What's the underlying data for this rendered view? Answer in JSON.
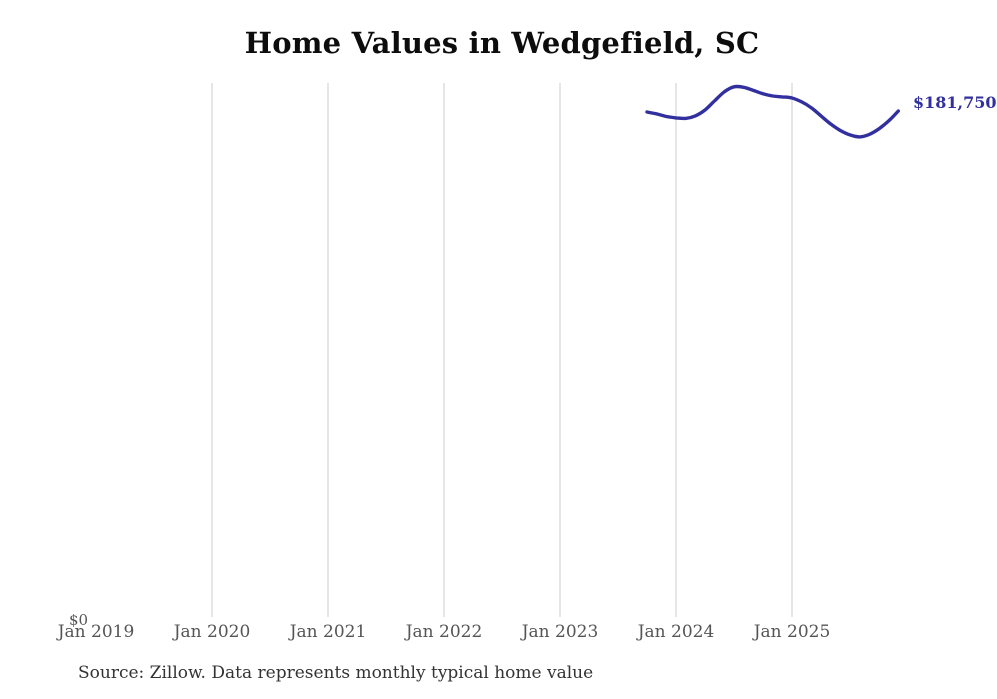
{
  "source_note": "Source: Zillow. Data represents monthly typical home value",
  "colors": {
    "line": "#32309f",
    "grid": "#cccccc",
    "tick_text": "#555555",
    "title_text": "#0d0d0d",
    "source_text": "#333333"
  },
  "chart_data": {
    "type": "line",
    "title": "Home Values in Wedgefield, SC",
    "xlabel": "",
    "ylabel": "",
    "y_zero_label": "$0",
    "end_value_label": "$181,750",
    "ylim": [
      0,
      192000
    ],
    "xlim": [
      "Jan 2019",
      "Jan 2026"
    ],
    "grid": "vertical-only",
    "legend": "none",
    "x_ticks": [
      {
        "label": "Jan 2019",
        "date": "2019-01",
        "gridline": false
      },
      {
        "label": "Jan 2020",
        "date": "2020-01",
        "gridline": true
      },
      {
        "label": "Jan 2021",
        "date": "2021-01",
        "gridline": true
      },
      {
        "label": "Jan 2022",
        "date": "2022-01",
        "gridline": true
      },
      {
        "label": "Jan 2023",
        "date": "2023-01",
        "gridline": true
      },
      {
        "label": "Jan 2024",
        "date": "2024-01",
        "gridline": true
      },
      {
        "label": "Jan 2025",
        "date": "2025-01",
        "gridline": true
      }
    ],
    "series": [
      {
        "name": "Monthly typical home value",
        "color": "#32309f",
        "points": [
          {
            "date": "2023-10",
            "value": 181400
          },
          {
            "date": "2023-11",
            "value": 180700
          },
          {
            "date": "2023-12",
            "value": 179800
          },
          {
            "date": "2024-01",
            "value": 179300
          },
          {
            "date": "2024-02",
            "value": 179100
          },
          {
            "date": "2024-03",
            "value": 180000
          },
          {
            "date": "2024-04",
            "value": 182100
          },
          {
            "date": "2024-05",
            "value": 185400
          },
          {
            "date": "2024-06",
            "value": 188600
          },
          {
            "date": "2024-07",
            "value": 190400
          },
          {
            "date": "2024-08",
            "value": 190200
          },
          {
            "date": "2024-09",
            "value": 189100
          },
          {
            "date": "2024-10",
            "value": 187900
          },
          {
            "date": "2024-11",
            "value": 187100
          },
          {
            "date": "2024-12",
            "value": 186800
          },
          {
            "date": "2025-01",
            "value": 186400
          },
          {
            "date": "2025-02",
            "value": 185000
          },
          {
            "date": "2025-03",
            "value": 182900
          },
          {
            "date": "2025-04",
            "value": 180000
          },
          {
            "date": "2025-05",
            "value": 177100
          },
          {
            "date": "2025-06",
            "value": 174800
          },
          {
            "date": "2025-07",
            "value": 173200
          },
          {
            "date": "2025-08",
            "value": 172500
          },
          {
            "date": "2025-09",
            "value": 173400
          },
          {
            "date": "2025-10",
            "value": 175400
          },
          {
            "date": "2025-11",
            "value": 178200
          },
          {
            "date": "2025-12",
            "value": 181750
          }
        ]
      }
    ]
  }
}
